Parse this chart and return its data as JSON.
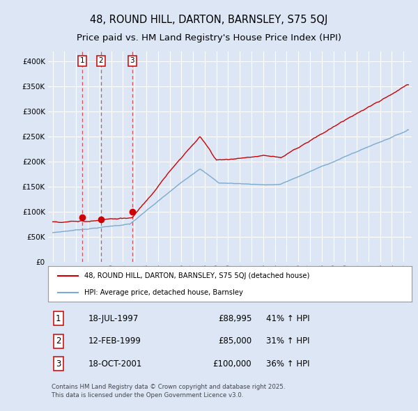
{
  "title": "48, ROUND HILL, DARTON, BARNSLEY, S75 5QJ",
  "subtitle": "Price paid vs. HM Land Registry's House Price Index (HPI)",
  "title_fontsize": 10.5,
  "subtitle_fontsize": 9.5,
  "background_color": "#dce6f5",
  "plot_bg_color": "#dce6f5",
  "grid_color": "#ffffff",
  "legend_label_red": "48, ROUND HILL, DARTON, BARNSLEY, S75 5QJ (detached house)",
  "legend_label_blue": "HPI: Average price, detached house, Barnsley",
  "red_color": "#cc0000",
  "blue_color": "#7aaad0",
  "transactions": [
    {
      "num": 1,
      "date_label": "18-JUL-1997",
      "date_x": 1997.54,
      "price": 88995,
      "hpi_pct": "41% ↑ HPI"
    },
    {
      "num": 2,
      "date_label": "12-FEB-1999",
      "date_x": 1999.12,
      "price": 85000,
      "hpi_pct": "31% ↑ HPI"
    },
    {
      "num": 3,
      "date_label": "18-OCT-2001",
      "date_x": 2001.79,
      "price": 100000,
      "hpi_pct": "36% ↑ HPI"
    }
  ],
  "footer": "Contains HM Land Registry data © Crown copyright and database right 2025.\nThis data is licensed under the Open Government Licence v3.0.",
  "ylim": [
    0,
    420000
  ],
  "yticks": [
    0,
    50000,
    100000,
    150000,
    200000,
    250000,
    300000,
    350000,
    400000
  ],
  "ytick_labels": [
    "£0",
    "£50K",
    "£100K",
    "£150K",
    "£200K",
    "£250K",
    "£300K",
    "£350K",
    "£400K"
  ],
  "xlim_start": 1994.6,
  "xlim_end": 2025.7
}
